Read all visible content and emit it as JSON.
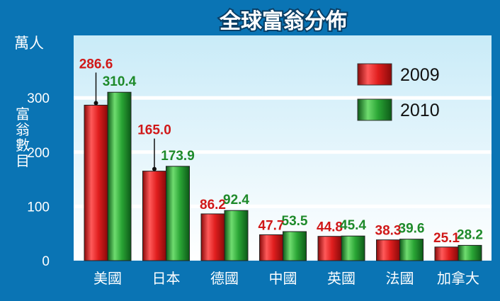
{
  "chart_data": {
    "type": "bar",
    "title": "全球富翁分佈",
    "unit": "萬人",
    "ylabel": "富翁數目",
    "xlabel": "",
    "ylim": [
      0,
      350
    ],
    "yticks": [
      0,
      100,
      200,
      300
    ],
    "grid": true,
    "legend_position": "top-right",
    "categories": [
      "美國",
      "日本",
      "德國",
      "中國",
      "英國",
      "法國",
      "加拿大"
    ],
    "series": [
      {
        "name": "2009",
        "values": [
          286.6,
          165.0,
          86.2,
          47.7,
          44.8,
          38.3,
          25.1
        ],
        "labels": [
          "286.6",
          "165.0",
          "86.2",
          "47.7",
          "44.8",
          "38.3",
          "25.1"
        ],
        "color": "#e01e1e",
        "label_color": "#d01818"
      },
      {
        "name": "2010",
        "values": [
          310.4,
          173.9,
          92.4,
          53.5,
          45.4,
          39.6,
          28.2
        ],
        "labels": [
          "310.4",
          "173.9",
          "92.4",
          "53.5",
          "45.4",
          "39.6",
          "28.2"
        ],
        "color": "#2aa535",
        "label_color": "#1e8a2a"
      }
    ]
  }
}
